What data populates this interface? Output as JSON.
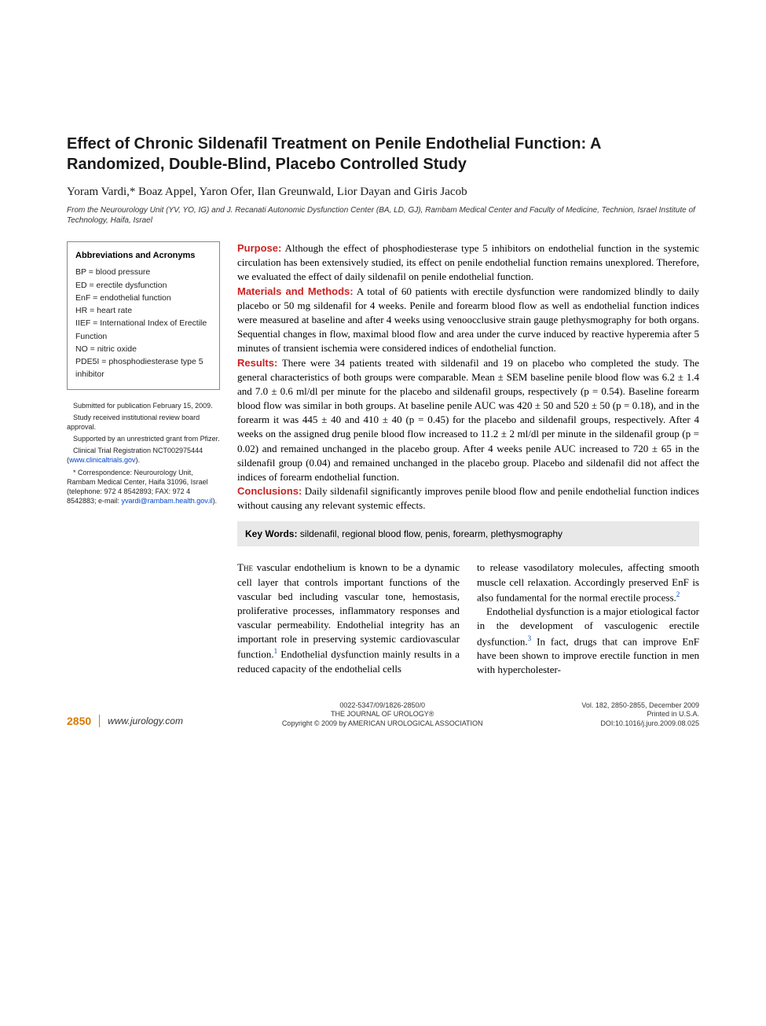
{
  "title": "Effect of Chronic Sildenafil Treatment on Penile Endothelial Function: A Randomized, Double-Blind, Placebo Controlled Study",
  "authors": "Yoram Vardi,* Boaz Appel, Yaron Ofer, Ilan Greunwald, Lior Dayan and Giris Jacob",
  "affiliation": "From the Neurourology Unit (YV, YO, IG) and J. Recanati Autonomic Dysfunction Center (BA, LD, GJ), Rambam Medical Center and Faculty of Medicine, Technion, Israel Institute of Technology, Haifa, Israel",
  "abbrev": {
    "title": "Abbreviations and Acronyms",
    "items": [
      "BP = blood pressure",
      "ED = erectile dysfunction",
      "EnF = endothelial function",
      "HR = heart rate",
      "IIEF = International Index of Erectile Function",
      "NO = nitric oxide",
      "PDE5I = phosphodiesterase type 5 inhibitor"
    ]
  },
  "footnotes": {
    "f1": "Submitted for publication February 15, 2009.",
    "f2": "Study received institutional review board approval.",
    "f3": "Supported by an unrestricted grant from Pfizer.",
    "f4a": "Clinical Trial Registration NCT002975444 (",
    "f4link": "www.clinicaltrials.gov",
    "f4b": ").",
    "f5a": "* Correspondence: Neurourology Unit, Rambam Medical Center, Haifa 31096, Israel (telephone: 972 4 8542893; FAX: 972 4 8542883; e-mail: ",
    "f5link": "yvardi@rambam.health.gov.il",
    "f5b": ")."
  },
  "abstract": {
    "purpose_label": "Purpose:",
    "purpose": " Although the effect of phosphodiesterase type 5 inhibitors on endothelial function in the systemic circulation has been extensively studied, its effect on penile endothelial function remains unexplored. Therefore, we evaluated the effect of daily sildenafil on penile endothelial function.",
    "methods_label": "Materials and Methods:",
    "methods": " A total of 60 patients with erectile dysfunction were randomized blindly to daily placebo or 50 mg sildenafil for 4 weeks. Penile and forearm blood flow as well as endothelial function indices were measured at baseline and after 4 weeks using venoocclusive strain gauge plethysmography for both organs. Sequential changes in flow, maximal blood flow and area under the curve induced by reactive hyperemia after 5 minutes of transient ischemia were considered indices of endothelial function.",
    "results_label": "Results:",
    "results": " There were 34 patients treated with sildenafil and 19 on placebo who completed the study. The general characteristics of both groups were comparable. Mean ± SEM baseline penile blood flow was 6.2 ± 1.4 and 7.0 ± 0.6 ml/dl per minute for the placebo and sildenafil groups, respectively (p = 0.54). Baseline forearm blood flow was similar in both groups. At baseline penile AUC was 420 ± 50 and 520 ± 50 (p = 0.18), and in the forearm it was 445 ± 40 and 410 ± 40 (p = 0.45) for the placebo and sildenafil groups, respectively. After 4 weeks on the assigned drug penile blood flow increased to 11.2 ± 2 ml/dl per minute in the sildenafil group (p = 0.02) and remained unchanged in the placebo group. After 4 weeks penile AUC increased to 720 ± 65 in the sildenafil group (0.04) and remained unchanged in the placebo group. Placebo and sildenafil did not affect the indices of forearm endothelial function.",
    "conclusions_label": "Conclusions:",
    "conclusions": " Daily sildenafil significantly improves penile blood flow and penile endothelial function indices without causing any relevant systemic effects."
  },
  "keywords": {
    "label": "Key Words:",
    "text": " sildenafil, regional blood flow, penis, forearm, plethysmography"
  },
  "body": {
    "col1": "vascular endothelium is known to be a dynamic cell layer that controls important functions of the vascular bed including vascular tone, hemostasis, proliferative processes, inflammatory responses and vascular permeability. Endothelial integrity has an important role in preserving systemic cardiovascular function.",
    "col1b": " Endothelial dysfunction mainly results in a reduced capacity of the endothelial cells",
    "col2a": "to release vasodilatory molecules, affecting smooth muscle cell relaxation. Accordingly preserved EnF is also fundamental for the normal erectile process.",
    "col2b": "Endothelial dysfunction is a major etiological factor in the development of vasculogenic erectile dysfunction.",
    "col2c": " In fact, drugs that can improve EnF have been shown to improve erectile function in men with hypercholester-"
  },
  "footer": {
    "page": "2850",
    "site": "www.jurology.com",
    "issn": "0022-5347/09/1826-2850/0",
    "journal": "THE JOURNAL OF UROLOGY®",
    "copyright": "Copyright © 2009 by AMERICAN UROLOGICAL ASSOCIATION",
    "volume": "Vol. 182, 2850-2855, December 2009",
    "printed": "Printed in U.S.A.",
    "doi": "DOI:10.1016/j.juro.2009.08.025"
  },
  "colors": {
    "section_label": "#cc2222",
    "link": "#0044cc",
    "page_accent": "#d97a00",
    "keywords_bg": "#e8e8e8",
    "border": "#888888"
  }
}
